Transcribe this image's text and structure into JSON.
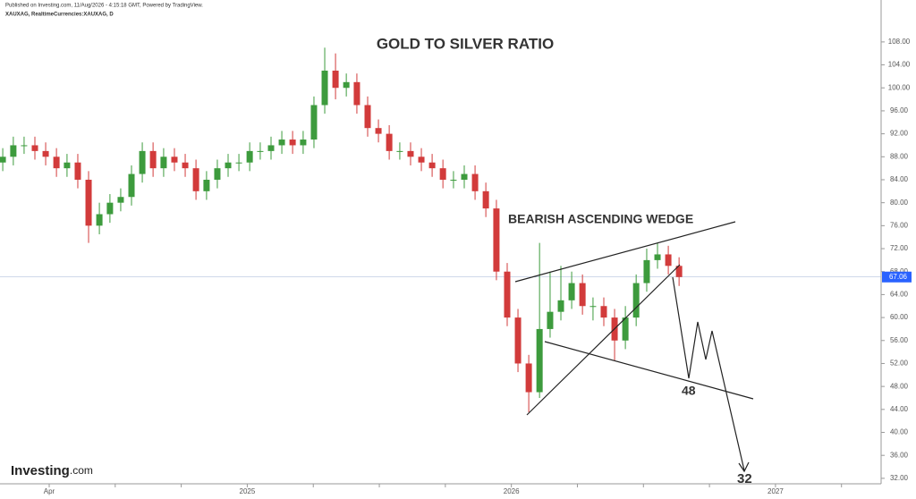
{
  "header": {
    "published": "Published on Investing.com, 11/Aug/2026 - 4:15:18 GMT, Powered by TradingView.",
    "symbol": "XAUXAG, RealtimeCurrencies:XAUXAG, D",
    "logo": "Investing",
    "logo_suffix": ".com"
  },
  "chart_data": {
    "type": "candlestick",
    "title": "GOLD TO SILVER RATIO",
    "annotations": [
      "BEARISH ASCENDING WEDGE",
      "48",
      "32"
    ],
    "up_color": "#3d9b3d",
    "down_color": "#d23b3b",
    "last_price": 67.06,
    "last_price_color": "#2962ff",
    "x": [
      0.89,
      1.37,
      1.86,
      2.35,
      2.84,
      3.33,
      3.81,
      4.3,
      4.79,
      5.28,
      5.76,
      6.25,
      6.74,
      7.23,
      7.72,
      8.2,
      8.69,
      9.18,
      9.67,
      10.15,
      10.64,
      11.13,
      11.62,
      12.11,
      12.59,
      13.08,
      13.57,
      14.06,
      14.54,
      15.03,
      15.52,
      16.01,
      16.5,
      16.98,
      17.47,
      17.96,
      18.45,
      18.93,
      19.42,
      19.91,
      20.4,
      20.89,
      21.37,
      21.86,
      22.35,
      22.84,
      23.32,
      23.81,
      24.3,
      24.79,
      25.28,
      25.76,
      26.25,
      26.74,
      27.23,
      27.71,
      28.2,
      28.69,
      29.18,
      29.67,
      30.15,
      30.64,
      31.13,
      31.62
    ],
    "open": [
      87,
      88,
      90,
      90,
      89,
      88,
      86,
      87,
      84,
      76,
      78,
      80,
      81,
      85,
      89,
      86,
      88,
      87,
      86,
      82,
      84,
      86,
      87,
      87,
      89,
      89,
      90,
      91,
      90,
      91,
      97,
      103,
      100,
      101,
      97,
      93,
      92,
      89,
      89,
      88,
      87,
      86,
      84,
      84,
      85,
      82,
      79,
      68,
      60,
      52,
      47,
      58,
      61,
      63,
      66,
      62,
      62,
      60,
      56,
      60,
      66,
      70,
      71,
      69
    ],
    "high": [
      89.5,
      91.5,
      91.5,
      91.5,
      90.5,
      89.5,
      88.5,
      88.5,
      85.5,
      80,
      81.5,
      82.5,
      86.5,
      90.5,
      90.5,
      89.5,
      89.5,
      88.5,
      87.5,
      85.5,
      87.5,
      88.5,
      88.5,
      90.5,
      90.5,
      91.5,
      92.5,
      92.5,
      92.5,
      98.5,
      107,
      106,
      102.5,
      102.5,
      98.5,
      94.5,
      93.5,
      90.5,
      90.5,
      89.5,
      88.5,
      87.5,
      85.5,
      86.5,
      86.5,
      83.5,
      80.5,
      69.5,
      61.5,
      53.5,
      73,
      68,
      69,
      68,
      67.5,
      63.5,
      63.5,
      61.5,
      62,
      67.5,
      72,
      73,
      72.5,
      70.5
    ],
    "low": [
      85.5,
      86.5,
      88.5,
      87.5,
      86.5,
      84.5,
      84.5,
      82.5,
      73,
      74.5,
      76.5,
      78.5,
      79.5,
      83.5,
      84.5,
      84.5,
      85.5,
      84.5,
      80.5,
      80.5,
      82.5,
      84.5,
      85.5,
      85.5,
      87.5,
      87.5,
      88.5,
      88.5,
      88.5,
      89.5,
      95.5,
      98,
      98.5,
      95.5,
      91.5,
      90.5,
      87.5,
      87.5,
      86.5,
      85.5,
      84.5,
      82.5,
      82.5,
      82.5,
      80.5,
      77.5,
      66.5,
      58.5,
      50.5,
      43.5,
      46,
      56.5,
      59.5,
      61.5,
      60.5,
      59.5,
      58.5,
      52.5,
      54.5,
      58.5,
      64.5,
      68.5,
      67.5,
      65.5
    ],
    "close": [
      88,
      90,
      90,
      89,
      88,
      86,
      87,
      84,
      76,
      78,
      80,
      81,
      85,
      89,
      86,
      88,
      87,
      86,
      82,
      84,
      86,
      87,
      87,
      89,
      89,
      90,
      91,
      90,
      91,
      97,
      103,
      100,
      101,
      97,
      93,
      92,
      89,
      89,
      88,
      87,
      86,
      84,
      84,
      85,
      82,
      79,
      68,
      60,
      52,
      47,
      58,
      61,
      63,
      66,
      62,
      62,
      60,
      56,
      60,
      66,
      70,
      71,
      69,
      67.06
    ],
    "xlim": [
      0.765,
      40.8
    ],
    "xticks": [
      {
        "value": 3,
        "label": "Apr"
      },
      {
        "value": 12,
        "label": "2025"
      },
      {
        "value": 24,
        "label": "2026"
      },
      {
        "value": 36,
        "label": "2027"
      }
    ],
    "xticks_minor": [
      6,
      9,
      15,
      18,
      21,
      27,
      30,
      33,
      39
    ],
    "ylim": [
      28.4,
      115.3
    ],
    "yticks": [
      {
        "value": 32,
        "label": "32.00"
      },
      {
        "value": 36,
        "label": "36.00"
      },
      {
        "value": 40,
        "label": "40.00"
      },
      {
        "value": 44,
        "label": "44.00"
      },
      {
        "value": 48,
        "label": "48.00"
      },
      {
        "value": 52,
        "label": "52.00"
      },
      {
        "value": 56,
        "label": "56.00"
      },
      {
        "value": 60,
        "label": "60.00"
      },
      {
        "value": 64,
        "label": "64.00"
      },
      {
        "value": 68,
        "label": "68.00"
      },
      {
        "value": 72,
        "label": "72.00"
      },
      {
        "value": 76,
        "label": "76.00"
      },
      {
        "value": 80,
        "label": "80.00"
      },
      {
        "value": 84,
        "label": "84.00"
      },
      {
        "value": 88,
        "label": "88.00"
      },
      {
        "value": 92,
        "label": "92.00"
      },
      {
        "value": 96,
        "label": "96.00"
      },
      {
        "value": 100,
        "label": "100.00"
      },
      {
        "value": 104,
        "label": "104.00"
      },
      {
        "value": 108,
        "label": "108.00"
      }
    ]
  }
}
